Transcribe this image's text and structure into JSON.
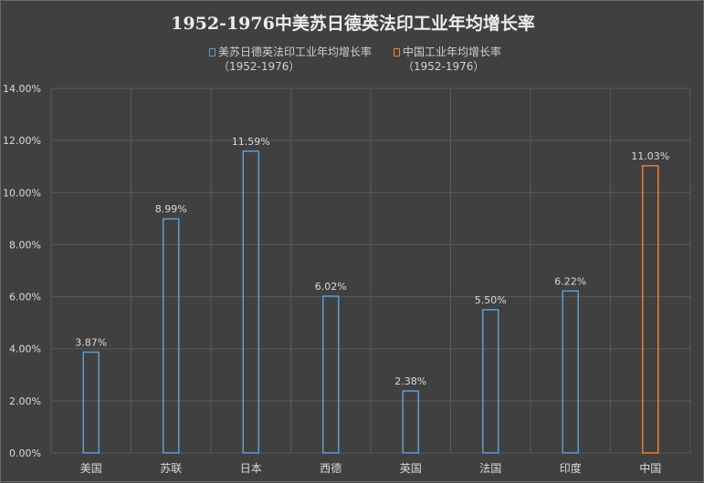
{
  "chart_data": {
    "type": "bar",
    "title": "1952-1976中美苏日德英法印工业年均增长率",
    "xlabel": "",
    "ylabel": "",
    "ylim": [
      0,
      14
    ],
    "y_ticks": [
      "0.00%",
      "2.00%",
      "4.00%",
      "6.00%",
      "8.00%",
      "10.00%",
      "12.00%",
      "14.00%"
    ],
    "y_tick_values": [
      0,
      2,
      4,
      6,
      8,
      10,
      12,
      14
    ],
    "grid": true,
    "legend_position": "top",
    "categories": [
      "美国",
      "苏联",
      "日本",
      "西德",
      "英国",
      "法国",
      "印度",
      "中国"
    ],
    "series": [
      {
        "name": "美苏日德英法印工业年均增长率",
        "name_sub": "（1952-1976）",
        "color": "#5b9bd5",
        "values": [
          3.87,
          8.99,
          11.59,
          6.02,
          2.38,
          5.5,
          6.22,
          null
        ],
        "labels": [
          "3.87%",
          "8.99%",
          "11.59%",
          "6.02%",
          "2.38%",
          "5.50%",
          "6.22%",
          ""
        ]
      },
      {
        "name": "中国工业年均增长率",
        "name_sub": "（1952-1976）",
        "color": "#ed7d31",
        "values": [
          null,
          null,
          null,
          null,
          null,
          null,
          null,
          11.03
        ],
        "labels": [
          "",
          "",
          "",
          "",
          "",
          "",
          "",
          "11.03%"
        ]
      }
    ]
  },
  "style": {
    "background": "#404040",
    "grid_color": "#5a5a5a",
    "text_color": "#d9d9d9"
  }
}
